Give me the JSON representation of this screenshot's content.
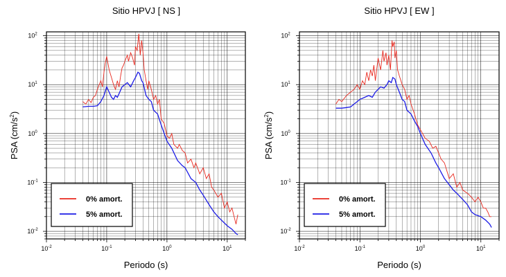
{
  "chart_data": [
    {
      "type": "line",
      "title": "Sitio HPVJ [ NS ]",
      "xlabel": "Periodo (s)",
      "ylabel": "PSA (cm/s2)",
      "xscale": "log",
      "yscale": "log",
      "xlim": [
        0.01,
        20
      ],
      "ylim": [
        0.007,
        120
      ],
      "grid": true,
      "legend_position": "bottom-left",
      "xticks": [
        {
          "base": "10",
          "exp": "-2"
        },
        {
          "base": "10",
          "exp": "-1"
        },
        {
          "base": "10",
          "exp": "0"
        },
        {
          "base": "10",
          "exp": "1"
        }
      ],
      "yticks": [
        {
          "base": "10",
          "exp": "-2"
        },
        {
          "base": "10",
          "exp": "-1"
        },
        {
          "base": "10",
          "exp": "0"
        },
        {
          "base": "10",
          "exp": "1"
        },
        {
          "base": "10",
          "exp": "2"
        }
      ],
      "series": [
        {
          "name": "0% amort.",
          "color": "#e8281e",
          "x": [
            0.04,
            0.045,
            0.05,
            0.055,
            0.06,
            0.065,
            0.07,
            0.075,
            0.08,
            0.085,
            0.09,
            0.095,
            0.1,
            0.11,
            0.12,
            0.13,
            0.14,
            0.15,
            0.16,
            0.17,
            0.18,
            0.19,
            0.2,
            0.21,
            0.22,
            0.23,
            0.25,
            0.27,
            0.29,
            0.3,
            0.32,
            0.34,
            0.35,
            0.36,
            0.38,
            0.4,
            0.42,
            0.45,
            0.48,
            0.5,
            0.55,
            0.6,
            0.65,
            0.7,
            0.75,
            0.8,
            0.9,
            1.0,
            1.1,
            1.2,
            1.3,
            1.5,
            1.6,
            1.8,
            2.0,
            2.2,
            2.5,
            2.8,
            3.0,
            3.5,
            4.0,
            4.5,
            5.0,
            5.5,
            6.0,
            7.0,
            8.0,
            9.0,
            10.0,
            11.0,
            12.0,
            13.0,
            14.0,
            15.0
          ],
          "values": [
            4.5,
            4.0,
            5.0,
            4.3,
            5.5,
            6.0,
            8.0,
            10.0,
            12.0,
            9.0,
            18.0,
            28.0,
            38.0,
            20.0,
            14.0,
            10.0,
            8.0,
            12.0,
            9.0,
            15.0,
            22.0,
            25.0,
            30.0,
            35.0,
            40.0,
            30.0,
            45.0,
            35.0,
            25.0,
            60.0,
            50.0,
            110.0,
            70.0,
            40.0,
            80.0,
            45.0,
            20.0,
            12.0,
            8.0,
            12.0,
            8.0,
            5.0,
            6.0,
            4.0,
            5.0,
            2.0,
            1.6,
            0.9,
            0.8,
            1.0,
            0.6,
            0.5,
            0.6,
            0.45,
            0.4,
            0.25,
            0.3,
            0.2,
            0.25,
            0.15,
            0.2,
            0.12,
            0.15,
            0.08,
            0.07,
            0.05,
            0.06,
            0.03,
            0.04,
            0.025,
            0.03,
            0.02,
            0.014,
            0.022
          ]
        },
        {
          "name": "5% amort.",
          "color": "#1c1ce6",
          "x": [
            0.04,
            0.05,
            0.06,
            0.07,
            0.08,
            0.09,
            0.1,
            0.11,
            0.12,
            0.13,
            0.14,
            0.15,
            0.16,
            0.18,
            0.2,
            0.22,
            0.25,
            0.28,
            0.3,
            0.33,
            0.35,
            0.38,
            0.4,
            0.45,
            0.5,
            0.55,
            0.6,
            0.7,
            0.8,
            0.9,
            1.0,
            1.2,
            1.5,
            1.8,
            2.0,
            2.5,
            3.0,
            3.5,
            4.0,
            5.0,
            6.0,
            7.0,
            8.0,
            10.0,
            12.0,
            14.0,
            15.0
          ],
          "values": [
            3.5,
            3.6,
            3.6,
            3.7,
            4.5,
            6.0,
            9.0,
            7.0,
            5.5,
            5.0,
            6.0,
            5.5,
            6.5,
            9.0,
            10.0,
            11.0,
            9.0,
            12.0,
            14.0,
            18.0,
            17.0,
            12.0,
            11.0,
            6.0,
            5.0,
            4.5,
            3.0,
            2.5,
            1.5,
            1.0,
            0.7,
            0.5,
            0.28,
            0.22,
            0.2,
            0.12,
            0.1,
            0.07,
            0.055,
            0.035,
            0.025,
            0.02,
            0.017,
            0.013,
            0.011,
            0.009,
            0.0085
          ]
        }
      ]
    },
    {
      "type": "line",
      "title": "Sitio HPVJ [ EW ]",
      "xlabel": "Periodo (s)",
      "ylabel": "PSA (cm/s2)",
      "xscale": "log",
      "yscale": "log",
      "xlim": [
        0.01,
        20
      ],
      "ylim": [
        0.007,
        120
      ],
      "grid": true,
      "legend_position": "bottom-left",
      "xticks": [
        {
          "base": "10",
          "exp": "-2"
        },
        {
          "base": "10",
          "exp": "-1"
        },
        {
          "base": "10",
          "exp": "0"
        },
        {
          "base": "10",
          "exp": "1"
        }
      ],
      "yticks": [
        {
          "base": "10",
          "exp": "-2"
        },
        {
          "base": "10",
          "exp": "-1"
        },
        {
          "base": "10",
          "exp": "0"
        },
        {
          "base": "10",
          "exp": "1"
        },
        {
          "base": "10",
          "exp": "2"
        }
      ],
      "series": [
        {
          "name": "0% amort.",
          "color": "#e8281e",
          "x": [
            0.04,
            0.045,
            0.05,
            0.06,
            0.07,
            0.08,
            0.09,
            0.1,
            0.11,
            0.12,
            0.13,
            0.14,
            0.15,
            0.16,
            0.17,
            0.18,
            0.2,
            0.22,
            0.24,
            0.25,
            0.27,
            0.28,
            0.3,
            0.32,
            0.34,
            0.35,
            0.37,
            0.38,
            0.4,
            0.42,
            0.45,
            0.5,
            0.55,
            0.6,
            0.65,
            0.7,
            0.8,
            0.9,
            1.0,
            1.2,
            1.4,
            1.6,
            1.8,
            2.0,
            2.2,
            2.5,
            3.0,
            3.5,
            4.0,
            4.5,
            5.0,
            6.0,
            7.0,
            8.0,
            9.0,
            10.0,
            11.0,
            12.0,
            13.0,
            14.0,
            15.0
          ],
          "values": [
            4.0,
            5.0,
            4.5,
            6.0,
            7.0,
            8.0,
            10.0,
            8.0,
            12.0,
            10.0,
            18.0,
            12.0,
            20.0,
            15.0,
            25.0,
            12.0,
            35.0,
            20.0,
            50.0,
            30.0,
            45.0,
            25.0,
            40.0,
            20.0,
            80.0,
            60.0,
            75.0,
            35.0,
            50.0,
            20.0,
            15.0,
            10.0,
            8.0,
            5.0,
            6.0,
            4.0,
            2.5,
            1.5,
            1.2,
            0.8,
            0.7,
            0.5,
            0.55,
            0.4,
            0.3,
            0.25,
            0.12,
            0.15,
            0.08,
            0.1,
            0.07,
            0.06,
            0.05,
            0.04,
            0.05,
            0.04,
            0.03,
            0.03,
            0.025,
            0.02,
            0.02
          ]
        },
        {
          "name": "5% amort.",
          "color": "#1c1ce6",
          "x": [
            0.04,
            0.05,
            0.06,
            0.07,
            0.08,
            0.09,
            0.1,
            0.12,
            0.14,
            0.16,
            0.18,
            0.2,
            0.22,
            0.25,
            0.28,
            0.3,
            0.33,
            0.35,
            0.38,
            0.4,
            0.45,
            0.5,
            0.55,
            0.6,
            0.7,
            0.8,
            0.9,
            1.0,
            1.2,
            1.5,
            1.8,
            2.0,
            2.5,
            3.0,
            3.5,
            4.0,
            5.0,
            6.0,
            7.0,
            8.0,
            10.0,
            12.0,
            14.0,
            15.0
          ],
          "values": [
            3.3,
            3.3,
            3.4,
            3.5,
            4.0,
            4.5,
            5.0,
            5.5,
            6.0,
            5.5,
            7.0,
            8.0,
            9.0,
            8.5,
            10.0,
            12.0,
            11.0,
            14.0,
            13.0,
            10.0,
            7.0,
            5.0,
            4.5,
            3.0,
            2.5,
            1.8,
            1.4,
            1.0,
            0.6,
            0.4,
            0.25,
            0.2,
            0.12,
            0.09,
            0.07,
            0.06,
            0.045,
            0.035,
            0.025,
            0.022,
            0.02,
            0.017,
            0.014,
            0.012
          ]
        }
      ]
    }
  ]
}
